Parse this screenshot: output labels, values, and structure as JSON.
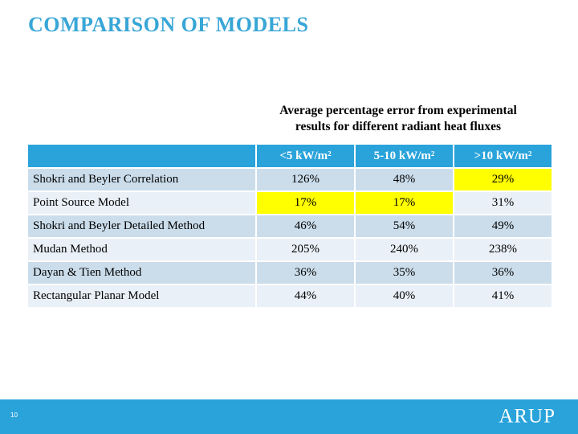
{
  "slide": {
    "title": "COMPARISON OF MODELS",
    "page_number": "10",
    "logo_text": "ARUP"
  },
  "table": {
    "caption": "Average percentage error from experimental results for different radiant heat fluxes",
    "columns": [
      "<5 kW/m²",
      "5-10 kW/m²",
      ">10 kW/m²"
    ],
    "rows": [
      {
        "label": "Shokri and Beyler Correlation",
        "values": [
          "126%",
          "48%",
          "29%"
        ],
        "highlight": [
          2
        ]
      },
      {
        "label": "Point Source Model",
        "values": [
          "17%",
          "17%",
          "31%"
        ],
        "highlight": [
          0,
          1
        ]
      },
      {
        "label": "Shokri and Beyler Detailed Method",
        "values": [
          "46%",
          "54%",
          "49%"
        ],
        "highlight": []
      },
      {
        "label": "Mudan Method",
        "values": [
          "205%",
          "240%",
          "238%"
        ],
        "highlight": []
      },
      {
        "label": "Dayan & Tien Method",
        "values": [
          "36%",
          "35%",
          "36%"
        ],
        "highlight": []
      },
      {
        "label": "Rectangular Planar Model",
        "values": [
          "44%",
          "40%",
          "41%"
        ],
        "highlight": []
      }
    ]
  },
  "colors": {
    "accent_blue": "#29A3DA",
    "title_blue": "#38A6D6",
    "band_dark": "#CBDDEB",
    "band_light": "#E9F0F7",
    "highlight_yellow": "#FFFF00"
  }
}
